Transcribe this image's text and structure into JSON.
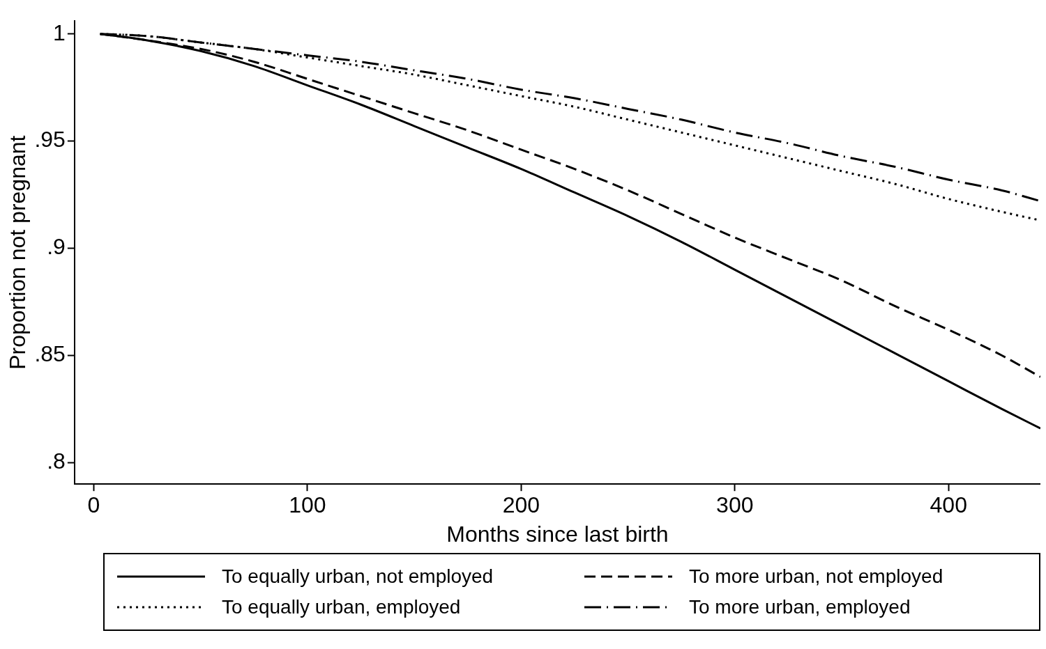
{
  "chart_data": {
    "type": "line",
    "xlabel": "Months since last birth",
    "ylabel": "Proportion not pregnant",
    "x": [
      3,
      25,
      50,
      75,
      100,
      125,
      150,
      175,
      200,
      225,
      250,
      275,
      300,
      325,
      350,
      375,
      400,
      425,
      443
    ],
    "series": [
      {
        "name": "To equally urban, not employed",
        "color": "#000000",
        "line_style": "solid",
        "values": [
          1,
          0.997,
          0.992,
          0.985,
          0.976,
          0.967,
          0.957,
          0.947,
          0.937,
          0.926,
          0.915,
          0.903,
          0.89,
          0.877,
          0.864,
          0.851,
          0.838,
          0.825,
          0.816
        ]
      },
      {
        "name": "To more urban, not employed",
        "color": "#000000",
        "line_style": "dashed",
        "values": [
          1,
          0.997,
          0.993,
          0.987,
          0.979,
          0.971,
          0.963,
          0.955,
          0.946,
          0.937,
          0.927,
          0.916,
          0.905,
          0.895,
          0.885,
          0.873,
          0.862,
          0.85,
          0.84
        ]
      },
      {
        "name": "To equally urban, employed",
        "color": "#000000",
        "line_style": "dotted",
        "values": [
          1,
          0.999,
          0.996,
          0.993,
          0.989,
          0.985,
          0.981,
          0.976,
          0.971,
          0.966,
          0.96,
          0.954,
          0.948,
          0.942,
          0.936,
          0.93,
          0.923,
          0.917,
          0.913
        ]
      },
      {
        "name": "To more urban, employed",
        "color": "#000000",
        "line_style": "dashdot",
        "values": [
          1,
          0.999,
          0.996,
          0.993,
          0.99,
          0.987,
          0.983,
          0.979,
          0.974,
          0.97,
          0.965,
          0.96,
          0.954,
          0.949,
          0.943,
          0.938,
          0.932,
          0.927,
          0.922
        ]
      }
    ],
    "xlim": [
      -9,
      443
    ],
    "ylim": [
      0.79,
      1.006
    ],
    "xticks": [
      0,
      100,
      200,
      300,
      400
    ],
    "yticks": [
      {
        "value": 0.8,
        "label": ".8"
      },
      {
        "value": 0.85,
        "label": ".85"
      },
      {
        "value": 0.9,
        "label": ".9"
      },
      {
        "value": 0.95,
        "label": ".95"
      },
      {
        "value": 1,
        "label": "1"
      }
    ],
    "grid": false,
    "legend": "bottom",
    "marker": "none"
  }
}
